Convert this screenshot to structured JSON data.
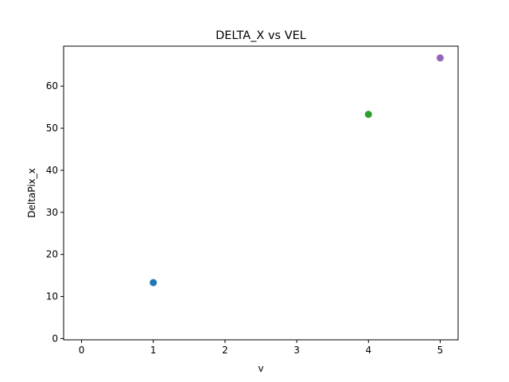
{
  "chart_data": {
    "type": "scatter",
    "title": "DELTA_X vs VEL",
    "xlabel": "v",
    "ylabel": "DeltaPix_x",
    "xlim": [
      -0.25,
      5.25
    ],
    "ylim": [
      -0.3,
      69.5
    ],
    "xticks": [
      0,
      1,
      2,
      3,
      4,
      5
    ],
    "yticks": [
      0,
      10,
      20,
      30,
      40,
      50,
      60
    ],
    "grid": false,
    "points": [
      {
        "x": 1,
        "y": 13.3,
        "color": "#1f77b4"
      },
      {
        "x": 4,
        "y": 53.3,
        "color": "#2ca02c"
      },
      {
        "x": 5,
        "y": 66.7,
        "color": "#9467bd"
      }
    ]
  }
}
